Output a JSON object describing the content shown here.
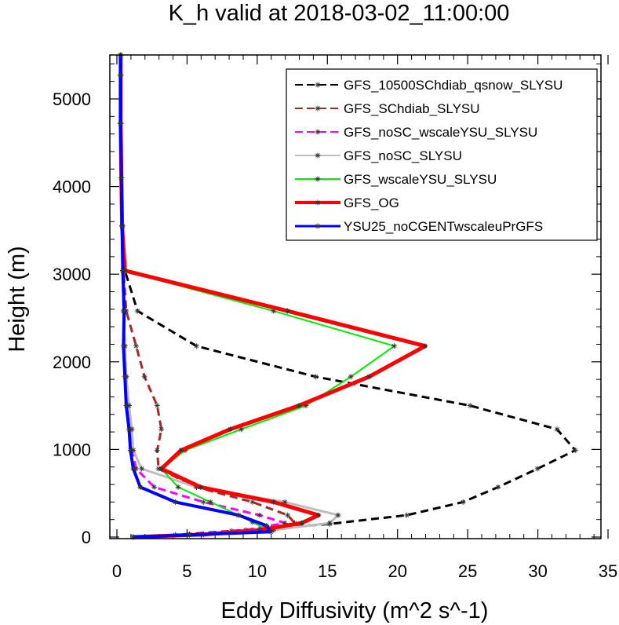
{
  "chart_data": {
    "type": "line",
    "title": "K_h valid at 2018-03-02_11:00:00",
    "xlabel": "Eddy Diffusivity (m^2 s^-1)",
    "ylabel": "Height (m)",
    "xlim": [
      0,
      35
    ],
    "ylim": [
      0,
      5500
    ],
    "xticks": [
      "0",
      "5",
      "10",
      "15",
      "20",
      "25",
      "30",
      "35"
    ],
    "yticks": [
      "0",
      "1000",
      "2000",
      "3000",
      "4000",
      "5000"
    ],
    "legend_position": "top-right",
    "series": [
      {
        "name": "GFS_10500SChdiab_qsnow_SLYSU",
        "color": "#000000",
        "dash": "dash",
        "width": 3,
        "points": [
          [
            1.0,
            0
          ],
          [
            4.0,
            25
          ],
          [
            8.0,
            70
          ],
          [
            15.0,
            150
          ],
          [
            20.5,
            250
          ],
          [
            24.5,
            400
          ],
          [
            27.0,
            570
          ],
          [
            29.8,
            780
          ],
          [
            32.5,
            990
          ],
          [
            31.2,
            1230
          ],
          [
            25.0,
            1500
          ],
          [
            14.0,
            1830
          ],
          [
            5.5,
            2180
          ],
          [
            1.3,
            2580
          ],
          [
            0.4,
            3040
          ],
          [
            0.25,
            3550
          ],
          [
            0.15,
            4100
          ],
          [
            0.1,
            4720
          ],
          [
            0.1,
            5270
          ],
          [
            0.1,
            5500
          ]
        ]
      },
      {
        "name": "GFS_SChdiab_SLYSU",
        "color": "#a52a2a",
        "dash": "dash",
        "width": 3,
        "points": [
          [
            1.0,
            0
          ],
          [
            5.0,
            30
          ],
          [
            10.0,
            80
          ],
          [
            12.5,
            160
          ],
          [
            12.0,
            250
          ],
          [
            9.5,
            400
          ],
          [
            5.5,
            570
          ],
          [
            2.8,
            780
          ],
          [
            2.7,
            990
          ],
          [
            3.0,
            1230
          ],
          [
            2.7,
            1500
          ],
          [
            1.8,
            1830
          ],
          [
            1.2,
            2180
          ],
          [
            0.5,
            2580
          ],
          [
            0.3,
            3040
          ],
          [
            0.2,
            3550
          ],
          [
            0.15,
            4100
          ],
          [
            0.1,
            4720
          ],
          [
            0.1,
            5270
          ],
          [
            0.1,
            5500
          ]
        ]
      },
      {
        "name": "GFS_noSC_wscaleYSU_SLYSU",
        "color": "#ff00ff",
        "dash": "dash",
        "width": 3,
        "points": [
          [
            1.0,
            0
          ],
          [
            5.0,
            30
          ],
          [
            9.0,
            80
          ],
          [
            11.8,
            160
          ],
          [
            10.0,
            250
          ],
          [
            6.0,
            400
          ],
          [
            2.5,
            570
          ],
          [
            1.2,
            780
          ],
          [
            0.9,
            990
          ],
          [
            0.8,
            1230
          ],
          [
            0.7,
            1500
          ],
          [
            0.5,
            1830
          ],
          [
            0.4,
            2180
          ],
          [
            0.3,
            2580
          ],
          [
            0.25,
            3040
          ],
          [
            0.2,
            3550
          ],
          [
            0.15,
            4100
          ],
          [
            0.1,
            4720
          ],
          [
            0.1,
            5270
          ],
          [
            0.1,
            5500
          ]
        ]
      },
      {
        "name": "GFS_noSC_SLYSU",
        "color": "#bebebe",
        "dash": "solid",
        "width": 3,
        "points": [
          [
            1.0,
            0
          ],
          [
            6.0,
            30
          ],
          [
            11.0,
            80
          ],
          [
            15.0,
            160
          ],
          [
            15.6,
            250
          ],
          [
            11.8,
            400
          ],
          [
            5.5,
            570
          ],
          [
            1.6,
            780
          ],
          [
            1.0,
            990
          ],
          [
            0.9,
            1230
          ],
          [
            0.7,
            1500
          ],
          [
            0.5,
            1830
          ],
          [
            0.4,
            2180
          ],
          [
            0.3,
            2580
          ],
          [
            0.25,
            3040
          ],
          [
            0.2,
            3550
          ],
          [
            0.15,
            4100
          ],
          [
            0.1,
            4720
          ],
          [
            0.1,
            5270
          ],
          [
            0.1,
            5500
          ]
        ]
      },
      {
        "name": "GFS_wscaleYSU_SLYSU",
        "color": "#00ee00",
        "dash": "solid",
        "width": 2,
        "points": [
          [
            1.0,
            0
          ],
          [
            6.0,
            30
          ],
          [
            10.5,
            90
          ],
          [
            9.5,
            170
          ],
          [
            8.5,
            250
          ],
          [
            6.5,
            400
          ],
          [
            4.2,
            570
          ],
          [
            3.0,
            780
          ],
          [
            4.7,
            990
          ],
          [
            8.7,
            1230
          ],
          [
            13.3,
            1500
          ],
          [
            16.5,
            1830
          ],
          [
            19.6,
            2180
          ],
          [
            11.0,
            2580
          ],
          [
            0.3,
            3040
          ],
          [
            0.2,
            3550
          ],
          [
            0.15,
            4100
          ],
          [
            0.1,
            4720
          ],
          [
            0.1,
            5270
          ],
          [
            0.1,
            5500
          ]
        ]
      },
      {
        "name": "GFS_OG",
        "color": "#ff0000",
        "dash": "solid",
        "width": 5,
        "points": [
          [
            1.0,
            0
          ],
          [
            6.0,
            30
          ],
          [
            10.0,
            80
          ],
          [
            13.0,
            160
          ],
          [
            14.2,
            250
          ],
          [
            11.0,
            400
          ],
          [
            5.8,
            570
          ],
          [
            3.0,
            780
          ],
          [
            4.4,
            990
          ],
          [
            7.9,
            1230
          ],
          [
            12.8,
            1500
          ],
          [
            17.8,
            1830
          ],
          [
            21.8,
            2180
          ],
          [
            12.0,
            2580
          ],
          [
            0.4,
            3040
          ],
          [
            0.2,
            3550
          ],
          [
            0.15,
            4100
          ],
          [
            0.1,
            4720
          ],
          [
            0.1,
            5270
          ],
          [
            0.1,
            5500
          ]
        ]
      },
      {
        "name": "YSU25_noCGENTwscaleuPrGFS",
        "color": "#0000ff",
        "dash": "solid",
        "width": 4,
        "points": [
          [
            1.0,
            0
          ],
          [
            5.0,
            25
          ],
          [
            10.8,
            60
          ],
          [
            10.5,
            130
          ],
          [
            8.5,
            250
          ],
          [
            4.0,
            400
          ],
          [
            1.5,
            570
          ],
          [
            1.0,
            780
          ],
          [
            0.8,
            990
          ],
          [
            0.7,
            1230
          ],
          [
            0.5,
            1500
          ],
          [
            0.4,
            1830
          ],
          [
            0.3,
            2180
          ],
          [
            0.35,
            2580
          ],
          [
            0.25,
            3040
          ],
          [
            0.2,
            3550
          ],
          [
            0.15,
            4100
          ],
          [
            0.1,
            4720
          ],
          [
            0.1,
            5270
          ],
          [
            0.1,
            5500
          ]
        ]
      }
    ]
  }
}
